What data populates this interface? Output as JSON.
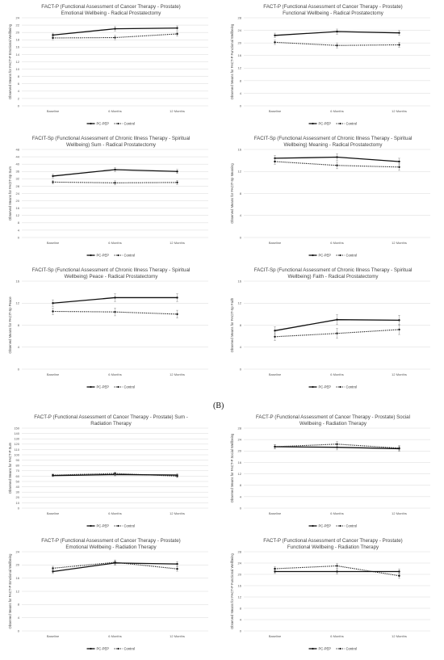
{
  "section_label": "(B)",
  "legend": [
    "PC-PEP",
    "Control"
  ],
  "chart_data": [
    {
      "type": "line",
      "title": [
        "FACT-P (Functional Assessment of Cancer Therapy - Prostate)",
        "Emotional Wellbeing - Radical Prostatectomy"
      ],
      "ylabel": "Observed Means for FACT-P Emotional Wellbeing",
      "categories": [
        "Baseline",
        "6 Months",
        "12 Months"
      ],
      "ylim": [
        0,
        24
      ],
      "yticks": [
        0,
        2,
        4,
        6,
        8,
        10,
        12,
        14,
        16,
        18,
        20,
        22,
        24
      ],
      "series": [
        {
          "name": "PC-PEP",
          "values": [
            19.3,
            21.0,
            21.2
          ]
        },
        {
          "name": "Control",
          "values": [
            18.5,
            18.6,
            19.6
          ]
        }
      ]
    },
    {
      "type": "line",
      "title": [
        "FACT-P (Functional Assessment of Cancer Therapy - Prostate)",
        "Functional Wellbeing - Radical Prostatectomy"
      ],
      "ylabel": "Observed Means for FACT-P Functional Wellbeing",
      "categories": [
        "Baseline",
        "6 Months",
        "12 Months"
      ],
      "ylim": [
        0,
        28
      ],
      "yticks": [
        0,
        4,
        8,
        12,
        16,
        20,
        24,
        28
      ],
      "series": [
        {
          "name": "PC-PEP",
          "values": [
            22.4,
            23.6,
            23.2
          ]
        },
        {
          "name": "Control",
          "values": [
            20.2,
            19.2,
            19.4
          ]
        }
      ]
    },
    {
      "type": "line",
      "title": [
        "FACIT-Sp (Functional Assessment of Chronic Illness Therapy - Spiritual",
        "Wellbeing) Sum - Radical Prostatectomy"
      ],
      "ylabel": "Observed Means for FACIT-Sp Sum",
      "categories": [
        "Baseline",
        "6 Months",
        "12 Months"
      ],
      "ylim": [
        0,
        48
      ],
      "yticks": [
        0,
        4,
        8,
        12,
        16,
        20,
        24,
        28,
        32,
        36,
        40,
        44,
        48
      ],
      "series": [
        {
          "name": "PC-PEP",
          "values": [
            33.5,
            37.0,
            36.0
          ]
        },
        {
          "name": "Control",
          "values": [
            30.2,
            29.8,
            30.0
          ]
        }
      ]
    },
    {
      "type": "line",
      "title": [
        "FACIT-Sp (Functional Assessment of Chronic Illness Therapy - Spiritual",
        "Wellbeing) Meaning - Radical Prostatectomy"
      ],
      "ylabel": "Observed Means for FACIT-Sp Meaning",
      "categories": [
        "Baseline",
        "6 Months",
        "12 Months"
      ],
      "ylim": [
        0,
        16
      ],
      "yticks": [
        0,
        4,
        8,
        12,
        16
      ],
      "series": [
        {
          "name": "PC-PEP",
          "values": [
            14.4,
            14.6,
            13.8
          ]
        },
        {
          "name": "Control",
          "values": [
            13.8,
            13.1,
            12.8
          ]
        }
      ]
    },
    {
      "type": "line",
      "title": [
        "FACIT-Sp (Functional Assessment of Chronic Illness Therapy - Spiritual",
        "Wellbeing) Peace - Radical Prostatectomy"
      ],
      "ylabel": "Observed Means for FACIT-Sp Peace",
      "categories": [
        "Baseline",
        "6 Months",
        "12 Months"
      ],
      "ylim": [
        0,
        16
      ],
      "yticks": [
        0,
        4,
        8,
        12,
        16
      ],
      "series": [
        {
          "name": "PC-PEP",
          "values": [
            12.0,
            13.0,
            13.0
          ]
        },
        {
          "name": "Control",
          "values": [
            10.5,
            10.4,
            10.0
          ]
        }
      ]
    },
    {
      "type": "line",
      "title": [
        "FACIT-Sp (Functional Assessment of Chronic Illness Therapy - Spiritual",
        "Wellbeing) Faith - Radical Prostatectomy"
      ],
      "ylabel": "Observed Means for FACIT-Sp Faith",
      "categories": [
        "Baseline",
        "6 Months",
        "12 Months"
      ],
      "ylim": [
        0,
        16
      ],
      "yticks": [
        0,
        4,
        8,
        12,
        16
      ],
      "series": [
        {
          "name": "PC-PEP",
          "values": [
            7.0,
            9.0,
            8.9
          ]
        },
        {
          "name": "Control",
          "values": [
            5.9,
            6.5,
            7.2
          ]
        }
      ]
    },
    {
      "type": "line",
      "title": [
        "FACT-P (Functional Assessment of Cancer Therapy - Prostate) Sum -",
        "Radiation Therapy"
      ],
      "ylabel": "Observed Means for FACT-P Sum",
      "categories": [
        "Baseline",
        "6 Months",
        "12 Months"
      ],
      "ylim": [
        0,
        150
      ],
      "yticks": [
        0,
        10,
        20,
        30,
        40,
        50,
        60,
        70,
        80,
        90,
        100,
        110,
        120,
        130,
        140,
        150
      ],
      "series": [
        {
          "name": "PC-PEP",
          "values": [
            61,
            63,
            62
          ]
        },
        {
          "name": "Control",
          "values": [
            62,
            65,
            60
          ]
        }
      ]
    },
    {
      "type": "line",
      "title": [
        "FACT-P (Functional Assessment of Cancer Therapy - Prostate) Social",
        "Wellbeing - Radiation Therapy"
      ],
      "ylabel": "Observed Means for FACT-P Social Wellbeing",
      "categories": [
        "Baseline",
        "6 Months",
        "12 Months"
      ],
      "ylim": [
        0,
        28
      ],
      "yticks": [
        0,
        4,
        8,
        12,
        16,
        20,
        24,
        28
      ],
      "series": [
        {
          "name": "PC-PEP",
          "values": [
            21.5,
            21.3,
            20.8
          ]
        },
        {
          "name": "Control",
          "values": [
            21.5,
            22.4,
            21.0
          ]
        }
      ]
    },
    {
      "type": "line",
      "title": [
        "FACT-P (Functional Assessment of Cancer Therapy - Prostate)",
        "Emotional Wellbeing - Radiation Therapy"
      ],
      "ylabel": "Observed Means for FACT-P Emotional Wellbeing",
      "categories": [
        "Baseline",
        "6 Months",
        "12 Months"
      ],
      "ylim": [
        0,
        24
      ],
      "yticks": [
        0,
        4,
        8,
        12,
        16,
        20,
        24
      ],
      "series": [
        {
          "name": "PC-PEP",
          "values": [
            18.0,
            20.6,
            20.3
          ]
        },
        {
          "name": "Control",
          "values": [
            19.0,
            20.8,
            18.8
          ]
        }
      ]
    },
    {
      "type": "line",
      "title": [
        "FACT-P (Functional Assessment of Cancer Therapy - Prostate)",
        "Functional Wellbeing - Radiation Therapy"
      ],
      "ylabel": "Observed Means for FACT-P Functional Wellbeing",
      "categories": [
        "Baseline",
        "6 Months",
        "12 Months"
      ],
      "ylim": [
        0,
        28
      ],
      "yticks": [
        0,
        4,
        8,
        12,
        16,
        20,
        24,
        28
      ],
      "series": [
        {
          "name": "PC-PEP",
          "values": [
            21.0,
            21.0,
            21.0
          ]
        },
        {
          "name": "Control",
          "values": [
            22.0,
            23.0,
            19.5
          ]
        }
      ]
    }
  ]
}
